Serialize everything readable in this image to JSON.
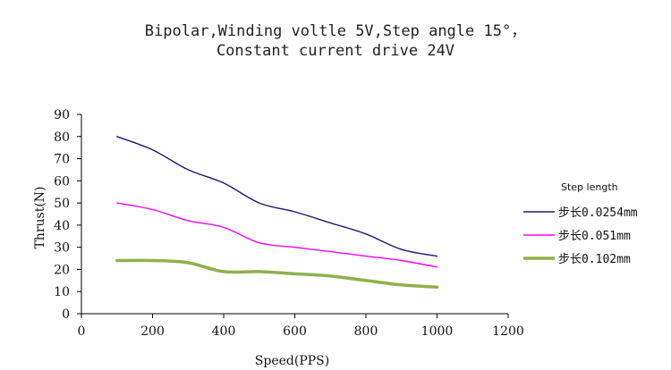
{
  "chart_data": {
    "type": "line",
    "title_line1": "Bipolar,Winding voltle 5V,Step angle 15°，",
    "title_line2": "Constant current drive 24V",
    "xlabel": "Speed(PPS)",
    "ylabel": "Thrust(N)",
    "xlim": [
      0,
      1200
    ],
    "ylim": [
      0,
      90
    ],
    "xticks": [
      0,
      200,
      400,
      600,
      800,
      1000,
      1200
    ],
    "yticks": [
      0,
      10,
      20,
      30,
      40,
      50,
      60,
      70,
      80,
      90
    ],
    "grid": false,
    "legend_title": "Step length",
    "legend_position": "right",
    "series": [
      {
        "name": "步长0.0254mm",
        "color": "#1a1a7a",
        "x": [
          100,
          200,
          300,
          400,
          500,
          600,
          700,
          800,
          900,
          1000
        ],
        "y": [
          80,
          74,
          65,
          59,
          50,
          46,
          41,
          36,
          29,
          26
        ]
      },
      {
        "name": "步长0.051mm",
        "color": "#ff00ff",
        "x": [
          100,
          200,
          300,
          400,
          500,
          600,
          700,
          800,
          900,
          1000
        ],
        "y": [
          50,
          47,
          42,
          39,
          32,
          30,
          28,
          26,
          24,
          21
        ]
      },
      {
        "name": "步长0.102mm",
        "color": "#8db24a",
        "x": [
          100,
          200,
          300,
          400,
          500,
          600,
          700,
          800,
          900,
          1000
        ],
        "y": [
          24,
          24,
          23,
          19,
          19,
          18,
          17,
          15,
          13,
          12
        ]
      }
    ]
  }
}
